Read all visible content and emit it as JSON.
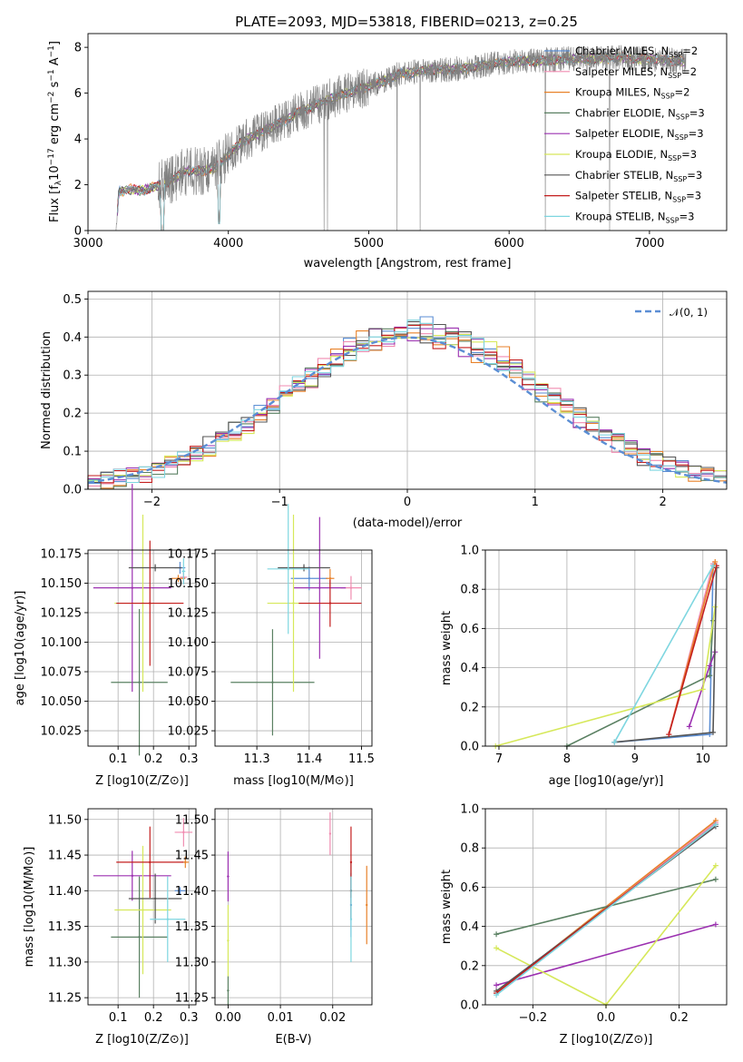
{
  "figure": {
    "title": "PLATE=2093, MJD=53818, FIBERID=0213, z=0.25"
  },
  "series_styles": [
    {
      "name": "Chabrier MILES",
      "nssp": "2",
      "color": "#5b8ed4"
    },
    {
      "name": "Salpeter MILES",
      "nssp": "2",
      "color": "#f08bb0"
    },
    {
      "name": "Kroupa MILES",
      "nssp": "2",
      "color": "#e8822a"
    },
    {
      "name": "Chabrier ELODIE",
      "nssp": "3",
      "color": "#5a8062"
    },
    {
      "name": "Salpeter ELODIE",
      "nssp": "3",
      "color": "#9b30b0"
    },
    {
      "name": "Kroupa ELODIE",
      "nssp": "3",
      "color": "#d6e85a"
    },
    {
      "name": "Chabrier STELIB",
      "nssp": "3",
      "color": "#555555"
    },
    {
      "name": "Salpeter STELIB",
      "nssp": "3",
      "color": "#c41e1e"
    },
    {
      "name": "Kroupa STELIB",
      "nssp": "3",
      "color": "#7ed6e0"
    }
  ],
  "chart_data": [
    {
      "id": "spectrum",
      "type": "line",
      "xlabel": "wavelength [Angstrom, rest frame]",
      "ylabel_main": "Flux [f",
      "ylabel_sub1": "λ",
      "ylabel_mid": "10",
      "ylabel_sup1": "−17",
      "ylabel_tail1": " erg cm",
      "ylabel_sup2": "−2",
      "ylabel_tail2": " s",
      "ylabel_sup3": "−1",
      "ylabel_tail3": " A",
      "ylabel_sup4": "−1",
      "ylabel_end": "]",
      "xlim": [
        3000,
        7550
      ],
      "ylim": [
        0,
        8.6
      ],
      "xticks": [
        "3000",
        "4000",
        "5000",
        "6000",
        "7000"
      ],
      "yticks": [
        "0",
        "2",
        "4",
        "6",
        "8"
      ],
      "data_color": "#808080",
      "continuum": {
        "x": [
          3200,
          3220,
          3300,
          3400,
          3500,
          3600,
          3700,
          3800,
          3900,
          4000,
          4100,
          4200,
          4300,
          4400,
          4500,
          4600,
          4700,
          4800,
          4900,
          5000,
          5100,
          5200,
          5300,
          5400,
          5500,
          5600,
          5700,
          5800,
          5900,
          6000,
          6100,
          6200,
          6300,
          6400,
          6500,
          6600,
          6700,
          6800,
          6900,
          7000,
          7100,
          7200
        ],
        "y": [
          0.0,
          1.7,
          1.8,
          1.75,
          1.95,
          2.2,
          2.6,
          2.6,
          2.7,
          3.3,
          3.9,
          4.2,
          4.5,
          4.8,
          5.2,
          5.4,
          5.7,
          5.9,
          6.1,
          6.3,
          6.5,
          6.8,
          6.9,
          7.0,
          7.0,
          7.05,
          7.1,
          7.2,
          7.3,
          7.35,
          7.4,
          7.4,
          7.45,
          7.5,
          7.5,
          7.5,
          7.55,
          7.55,
          7.5,
          7.5,
          7.45,
          7.4
        ]
      },
      "legend": {
        "location": "upper right"
      }
    },
    {
      "id": "residuals",
      "type": "histogram",
      "xlabel": "(data-model)/error",
      "ylabel": "Normed distribution",
      "xlim": [
        -2.5,
        2.5
      ],
      "ylim": [
        0,
        0.52
      ],
      "xticks": [
        "−2",
        "−1",
        "0",
        "1",
        "2"
      ],
      "yticks": [
        "0.0",
        "0.1",
        "0.2",
        "0.3",
        "0.4",
        "0.5"
      ],
      "bin_width": 0.1,
      "bin_start": -2.5,
      "reference_curve_label": "𝒩(0, 1)",
      "reference_color": "#5b8ed4",
      "legend": {
        "location": "upper right"
      }
    },
    {
      "id": "age_vs_Z",
      "type": "errorbar",
      "xlabel": "Z [log10(Z/Z⊙)]",
      "ylabel": "age  [log10(age/yr)]",
      "xlim": [
        0.015,
        0.32
      ],
      "ylim": [
        10.012,
        10.178
      ],
      "xticks": [
        "0.1",
        "0.2",
        "0.3"
      ],
      "yticks": [
        "10.025",
        "10.050",
        "10.075",
        "10.100",
        "10.125",
        "10.150",
        "10.175"
      ],
      "points": [
        {
          "s": 0,
          "x": 0.275,
          "y": 10.163,
          "xe": 0.015,
          "ye": 0.005
        },
        {
          "s": 1,
          "x": 0.285,
          "y": 10.155,
          "xe": 0.01,
          "ye": 0.004
        },
        {
          "s": 2,
          "x": 0.27,
          "y": 10.154,
          "xe": 0.02,
          "ye": 0.003
        },
        {
          "s": 3,
          "x": 0.16,
          "y": 10.066,
          "xe": 0.08,
          "ye": 0.062
        },
        {
          "s": 4,
          "x": 0.14,
          "y": 10.146,
          "xe": 0.11,
          "ye": 0.088
        },
        {
          "s": 5,
          "x": 0.17,
          "y": 10.133,
          "xe": 0.08,
          "ye": 0.075
        },
        {
          "s": 6,
          "x": 0.205,
          "y": 10.163,
          "xe": 0.075,
          "ye": 0.003
        },
        {
          "s": 7,
          "x": 0.19,
          "y": 10.133,
          "xe": 0.095,
          "ye": 0.053
        },
        {
          "s": 8,
          "x": 0.285,
          "y": 10.16,
          "xe": 0.005,
          "ye": 0.011
        }
      ]
    },
    {
      "id": "age_vs_mass",
      "type": "errorbar",
      "xlabel": "mass [log10(M/M⊙)]",
      "ylabel": "",
      "xlim": [
        11.22,
        11.52
      ],
      "ylim": [
        10.012,
        10.178
      ],
      "xticks": [
        "11.3",
        "11.4",
        "11.5"
      ],
      "yticks": [
        "10.025",
        "10.050",
        "10.075",
        "10.100",
        "10.125",
        "10.150",
        "10.175"
      ],
      "points": [
        {
          "s": 0,
          "x": 11.4,
          "y": 10.154,
          "xe": 0.035,
          "ye": 0.01
        },
        {
          "s": 1,
          "x": 11.48,
          "y": 10.146,
          "xe": 0.02,
          "ye": 0.01
        },
        {
          "s": 2,
          "x": 11.44,
          "y": 10.154,
          "xe": 0.008,
          "ye": 0.008
        },
        {
          "s": 3,
          "x": 11.33,
          "y": 10.066,
          "xe": 0.08,
          "ye": 0.045
        },
        {
          "s": 4,
          "x": 11.42,
          "y": 10.146,
          "xe": 0.05,
          "ye": 0.06
        },
        {
          "s": 5,
          "x": 11.37,
          "y": 10.133,
          "xe": 0.05,
          "ye": 0.075
        },
        {
          "s": 6,
          "x": 11.39,
          "y": 10.163,
          "xe": 0.05,
          "ye": 0.003
        },
        {
          "s": 7,
          "x": 11.44,
          "y": 10.133,
          "xe": 0.06,
          "ye": 0.02
        },
        {
          "s": 8,
          "x": 11.36,
          "y": 10.162,
          "xe": 0.04,
          "ye": 0.055
        }
      ]
    },
    {
      "id": "weight_vs_age",
      "type": "line",
      "xlabel": "age  [log10(age/yr)]",
      "ylabel": "mass weight",
      "xlim": [
        6.8,
        10.35
      ],
      "ylim": [
        0,
        1
      ],
      "xticks": [
        "7",
        "8",
        "9",
        "10"
      ],
      "yticks": [
        "0.0",
        "0.2",
        "0.4",
        "0.6",
        "0.8",
        "1.0"
      ],
      "series": [
        {
          "s": 0,
          "x": [
            8.7,
            10.1,
            10.15
          ],
          "y": [
            0.02,
            0.06,
            0.92
          ]
        },
        {
          "s": 1,
          "x": [
            9.5,
            10.15
          ],
          "y": [
            0.06,
            0.93
          ]
        },
        {
          "s": 2,
          "x": [
            9.5,
            10.18
          ],
          "y": [
            0.06,
            0.94
          ]
        },
        {
          "s": 3,
          "x": [
            8.0,
            10.1,
            10.15
          ],
          "y": [
            0.0,
            0.36,
            0.64
          ]
        },
        {
          "s": 4,
          "x": [
            9.8,
            10.1,
            10.18
          ],
          "y": [
            0.1,
            0.41,
            0.48
          ]
        },
        {
          "s": 5,
          "x": [
            6.95,
            10.0,
            10.18
          ],
          "y": [
            0.0,
            0.29,
            0.71
          ]
        },
        {
          "s": 6,
          "x": [
            8.7,
            10.15,
            10.2
          ],
          "y": [
            0.02,
            0.07,
            0.91
          ]
        },
        {
          "s": 7,
          "x": [
            9.5,
            10.2
          ],
          "y": [
            0.06,
            0.92
          ]
        },
        {
          "s": 8,
          "x": [
            8.7,
            10.15
          ],
          "y": [
            0.02,
            0.92
          ]
        }
      ]
    },
    {
      "id": "mass_vs_Z",
      "type": "errorbar",
      "xlabel": "Z [log10(Z/Z⊙)]",
      "ylabel": "mass [log10(M/M⊙)]",
      "xlim": [
        0.015,
        0.32
      ],
      "ylim": [
        11.24,
        11.515
      ],
      "xticks": [
        "0.1",
        "0.2",
        "0.3"
      ],
      "yticks": [
        "11.25",
        "11.30",
        "11.35",
        "11.40",
        "11.45",
        "11.50"
      ],
      "points": [
        {
          "s": 0,
          "x": 0.275,
          "y": 11.4,
          "xe": 0.015,
          "ye": 0.005
        },
        {
          "s": 1,
          "x": 0.285,
          "y": 11.482,
          "xe": 0.025,
          "ye": 0.02
        },
        {
          "s": 2,
          "x": 0.29,
          "y": 11.44,
          "xe": 0.01,
          "ye": 0.008
        },
        {
          "s": 3,
          "x": 0.16,
          "y": 11.335,
          "xe": 0.08,
          "ye": 0.085
        },
        {
          "s": 4,
          "x": 0.14,
          "y": 11.421,
          "xe": 0.11,
          "ye": 0.035
        },
        {
          "s": 5,
          "x": 0.17,
          "y": 11.373,
          "xe": 0.08,
          "ye": 0.09
        },
        {
          "s": 6,
          "x": 0.205,
          "y": 11.389,
          "xe": 0.075,
          "ye": 0.035
        },
        {
          "s": 7,
          "x": 0.19,
          "y": 11.44,
          "xe": 0.095,
          "ye": 0.05
        },
        {
          "s": 8,
          "x": 0.24,
          "y": 11.36,
          "xe": 0.05,
          "ye": 0.06
        }
      ]
    },
    {
      "id": "mass_vs_ebv",
      "type": "errorbar",
      "xlabel": "E(B-V)",
      "ylabel": "",
      "xlim": [
        -0.0025,
        0.0275
      ],
      "ylim": [
        11.24,
        11.515
      ],
      "xticks": [
        "0.00",
        "0.01",
        "0.02"
      ],
      "yticks": [
        "11.25",
        "11.30",
        "11.35",
        "11.40",
        "11.45",
        "11.50"
      ],
      "points": [
        {
          "s": 0,
          "x": 0.0235,
          "y": 11.38,
          "xe": 0,
          "ye": 0.045
        },
        {
          "s": 1,
          "x": 0.0195,
          "y": 11.48,
          "xe": 0,
          "ye": 0.03
        },
        {
          "s": 2,
          "x": 0.0265,
          "y": 11.38,
          "xe": 0,
          "ye": 0.055
        },
        {
          "s": 3,
          "x": 0.0,
          "y": 11.26,
          "xe": 0,
          "ye": 0.02
        },
        {
          "s": 4,
          "x": 0.0,
          "y": 11.42,
          "xe": 0,
          "ye": 0.035
        },
        {
          "s": 5,
          "x": 0.0,
          "y": 11.33,
          "xe": 0,
          "ye": 0.05
        },
        {
          "s": 6,
          "x": 0.0235,
          "y": 11.4,
          "xe": 0,
          "ye": 0.04
        },
        {
          "s": 7,
          "x": 0.0235,
          "y": 11.44,
          "xe": 0,
          "ye": 0.05
        },
        {
          "s": 8,
          "x": 0.0235,
          "y": 11.36,
          "xe": 0,
          "ye": 0.06
        }
      ]
    },
    {
      "id": "weight_vs_Z",
      "type": "line",
      "xlabel": "Z [log10(Z/Z⊙)]",
      "ylabel": "mass weight",
      "xlim": [
        -0.33,
        0.33
      ],
      "ylim": [
        0,
        1
      ],
      "xticks": [
        "−0.2",
        "0.0",
        "0.2"
      ],
      "yticks": [
        "0.0",
        "0.2",
        "0.4",
        "0.6",
        "0.8",
        "1.0"
      ],
      "series": [
        {
          "s": 0,
          "x": [
            -0.3,
            0.3
          ],
          "y": [
            0.06,
            0.92
          ]
        },
        {
          "s": 1,
          "x": [
            -0.3,
            0.3
          ],
          "y": [
            0.06,
            0.93
          ]
        },
        {
          "s": 2,
          "x": [
            -0.3,
            0.3
          ],
          "y": [
            0.06,
            0.94
          ]
        },
        {
          "s": 3,
          "x": [
            -0.3,
            0.3
          ],
          "y": [
            0.36,
            0.64
          ]
        },
        {
          "s": 4,
          "x": [
            -0.3,
            0.3
          ],
          "y": [
            0.1,
            0.41
          ]
        },
        {
          "s": 5,
          "x": [
            -0.3,
            0.0,
            0.3
          ],
          "y": [
            0.29,
            0.0,
            0.71
          ]
        },
        {
          "s": 6,
          "x": [
            -0.3,
            0.3
          ],
          "y": [
            0.07,
            0.91
          ]
        },
        {
          "s": 7,
          "x": [
            -0.3,
            0.3
          ],
          "y": [
            0.06,
            0.92
          ]
        },
        {
          "s": 8,
          "x": [
            -0.3,
            0.3
          ],
          "y": [
            0.05,
            0.92
          ]
        }
      ]
    }
  ]
}
